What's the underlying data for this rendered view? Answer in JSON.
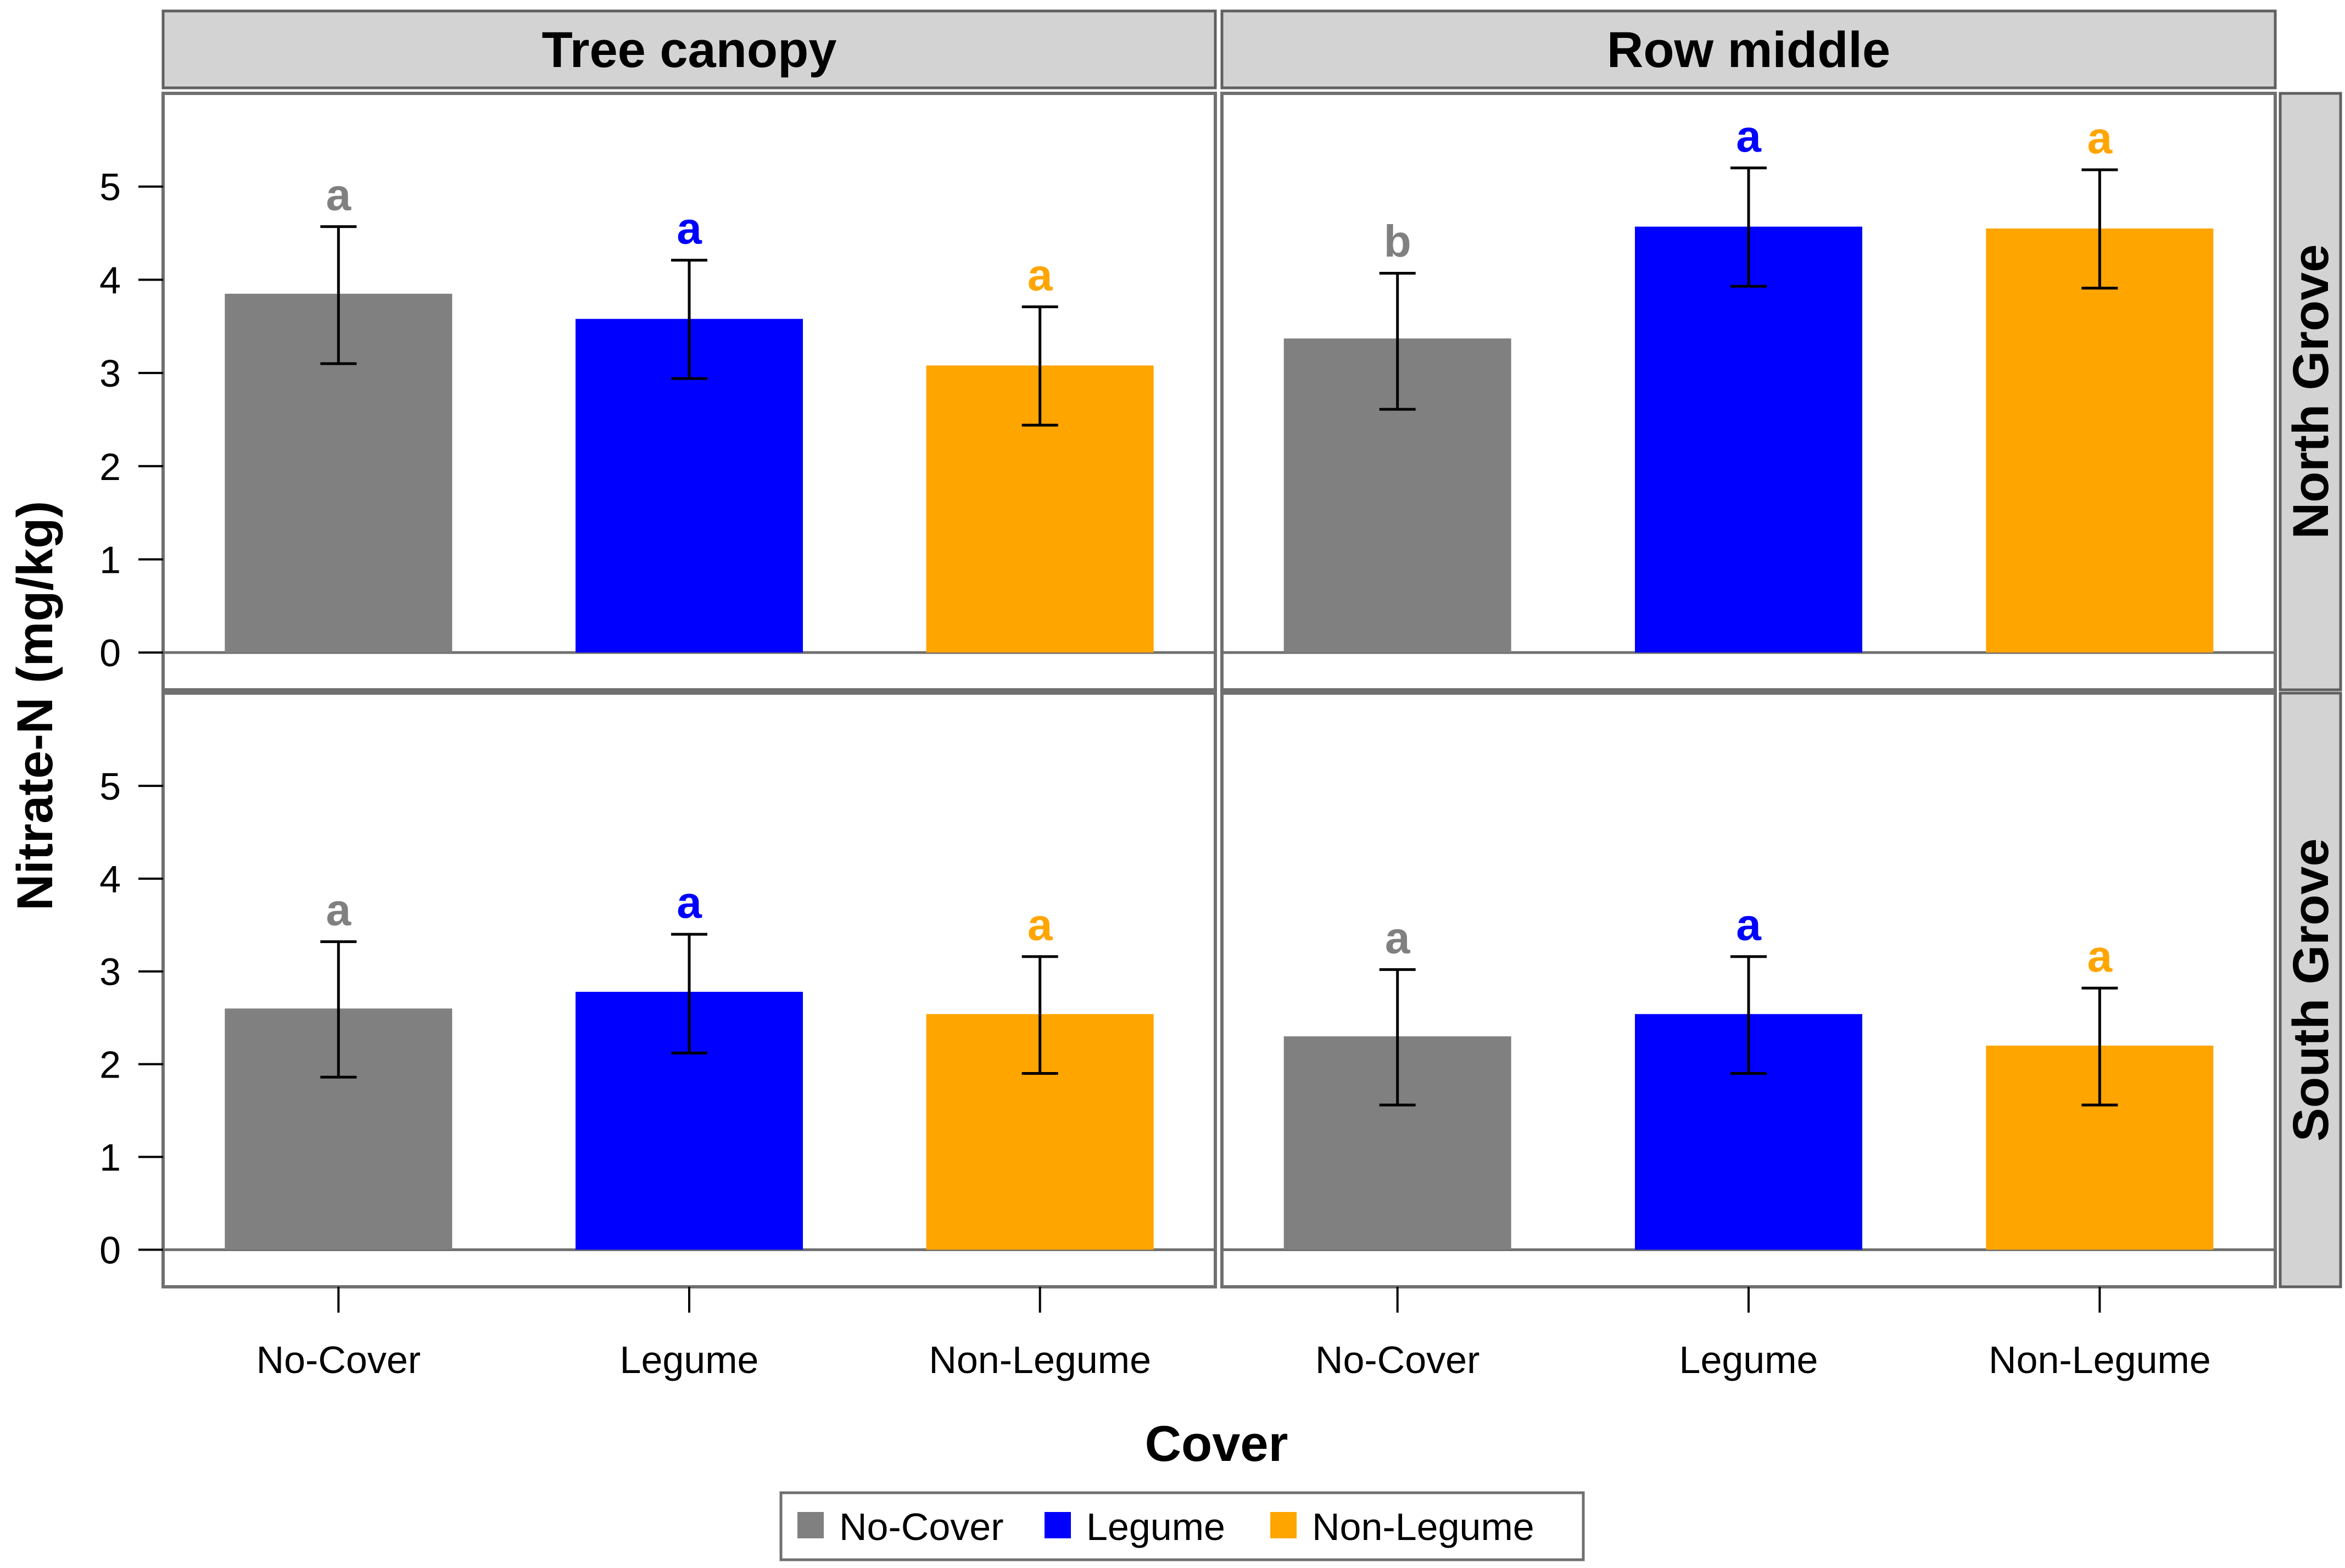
{
  "chart_data": {
    "type": "bar",
    "title": "",
    "xlabel": "Cover",
    "ylabel": "Nitrate-N  (mg/kg)",
    "ylim": [
      -0.4,
      6.0
    ],
    "yticks": [
      0,
      1,
      2,
      3,
      4,
      5
    ],
    "categories": [
      "No-Cover",
      "Legume",
      "Non-Legume"
    ],
    "colors": {
      "No-Cover": "#808080",
      "Legume": "#0000ff",
      "Non-Legume": "#ffa500"
    },
    "column_facets": [
      "Tree canopy",
      "Row middle"
    ],
    "row_facets": [
      "North Grove",
      "South Grove"
    ],
    "legend": {
      "position": "bottom-center",
      "entries": [
        "No-Cover",
        "Legume",
        "Non-Legume"
      ]
    },
    "panels": [
      {
        "column": "Tree canopy",
        "row": "North Grove",
        "bars": [
          {
            "category": "No-Cover",
            "value": 3.85,
            "err_low": 3.1,
            "err_high": 4.57,
            "letter": "a"
          },
          {
            "category": "Legume",
            "value": 3.58,
            "err_low": 2.94,
            "err_high": 4.21,
            "letter": "a"
          },
          {
            "category": "Non-Legume",
            "value": 3.08,
            "err_low": 2.44,
            "err_high": 3.71,
            "letter": "a"
          }
        ]
      },
      {
        "column": "Row middle",
        "row": "North Grove",
        "bars": [
          {
            "category": "No-Cover",
            "value": 3.37,
            "err_low": 2.61,
            "err_high": 4.07,
            "letter": "b"
          },
          {
            "category": "Legume",
            "value": 4.57,
            "err_low": 3.93,
            "err_high": 5.2,
            "letter": "a"
          },
          {
            "category": "Non-Legume",
            "value": 4.55,
            "err_low": 3.91,
            "err_high": 5.18,
            "letter": "a"
          }
        ]
      },
      {
        "column": "Tree canopy",
        "row": "South Grove",
        "bars": [
          {
            "category": "No-Cover",
            "value": 2.6,
            "err_low": 1.86,
            "err_high": 3.32,
            "letter": "a"
          },
          {
            "category": "Legume",
            "value": 2.78,
            "err_low": 2.12,
            "err_high": 3.4,
            "letter": "a"
          },
          {
            "category": "Non-Legume",
            "value": 2.54,
            "err_low": 1.9,
            "err_high": 3.16,
            "letter": "a"
          }
        ]
      },
      {
        "column": "Row middle",
        "row": "South Grove",
        "bars": [
          {
            "category": "No-Cover",
            "value": 2.3,
            "err_low": 1.56,
            "err_high": 3.02,
            "letter": "a"
          },
          {
            "category": "Legume",
            "value": 2.54,
            "err_low": 1.9,
            "err_high": 3.16,
            "letter": "a"
          },
          {
            "category": "Non-Legume",
            "value": 2.2,
            "err_low": 1.56,
            "err_high": 2.82,
            "letter": "a"
          }
        ]
      }
    ]
  }
}
